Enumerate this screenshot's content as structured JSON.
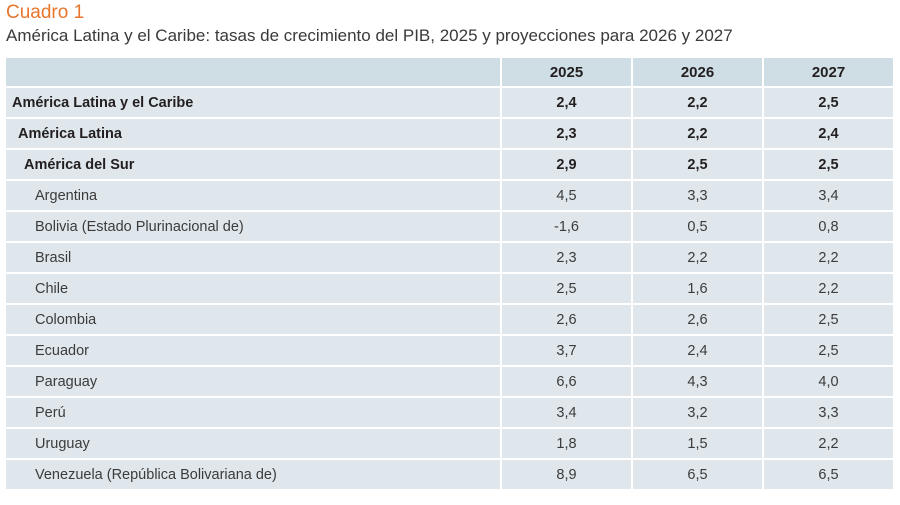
{
  "caption": "Cuadro 1",
  "subtitle": "América Latina y el Caribe: tasas de crecimiento del PIB, 2025 y proyecciones para 2026 y 2027",
  "colors": {
    "caption": "#e8762b",
    "header_bg": "#cfdde5",
    "row_bg": "#dfe7ec"
  },
  "table": {
    "columns": [
      "",
      "2025",
      "2026",
      "2027"
    ],
    "rows": [
      {
        "label": "América Latina y el Caribe",
        "level": 0,
        "bold": true,
        "values": [
          "2,4",
          "2,2",
          "2,5"
        ]
      },
      {
        "label": "América Latina",
        "level": 1,
        "bold": true,
        "values": [
          "2,3",
          "2,2",
          "2,4"
        ]
      },
      {
        "label": "América del Sur",
        "level": 2,
        "bold": true,
        "values": [
          "2,9",
          "2,5",
          "2,5"
        ]
      },
      {
        "label": "Argentina",
        "level": 3,
        "bold": false,
        "values": [
          "4,5",
          "3,3",
          "3,4"
        ]
      },
      {
        "label": "Bolivia (Estado Plurinacional de)",
        "level": 3,
        "bold": false,
        "values": [
          "-1,6",
          "0,5",
          "0,8"
        ]
      },
      {
        "label": "Brasil",
        "level": 3,
        "bold": false,
        "values": [
          "2,3",
          "2,2",
          "2,2"
        ]
      },
      {
        "label": "Chile",
        "level": 3,
        "bold": false,
        "values": [
          "2,5",
          "1,6",
          "2,2"
        ]
      },
      {
        "label": "Colombia",
        "level": 3,
        "bold": false,
        "values": [
          "2,6",
          "2,6",
          "2,5"
        ]
      },
      {
        "label": "Ecuador",
        "level": 3,
        "bold": false,
        "values": [
          "3,7",
          "2,4",
          "2,5"
        ]
      },
      {
        "label": "Paraguay",
        "level": 3,
        "bold": false,
        "values": [
          "6,6",
          "4,3",
          "4,0"
        ]
      },
      {
        "label": "Perú",
        "level": 3,
        "bold": false,
        "values": [
          "3,4",
          "3,2",
          "3,3"
        ]
      },
      {
        "label": "Uruguay",
        "level": 3,
        "bold": false,
        "values": [
          "1,8",
          "1,5",
          "2,2"
        ]
      },
      {
        "label": "Venezuela (República Bolivariana de)",
        "level": 3,
        "bold": false,
        "values": [
          "8,9",
          "6,5",
          "6,5"
        ]
      }
    ]
  }
}
